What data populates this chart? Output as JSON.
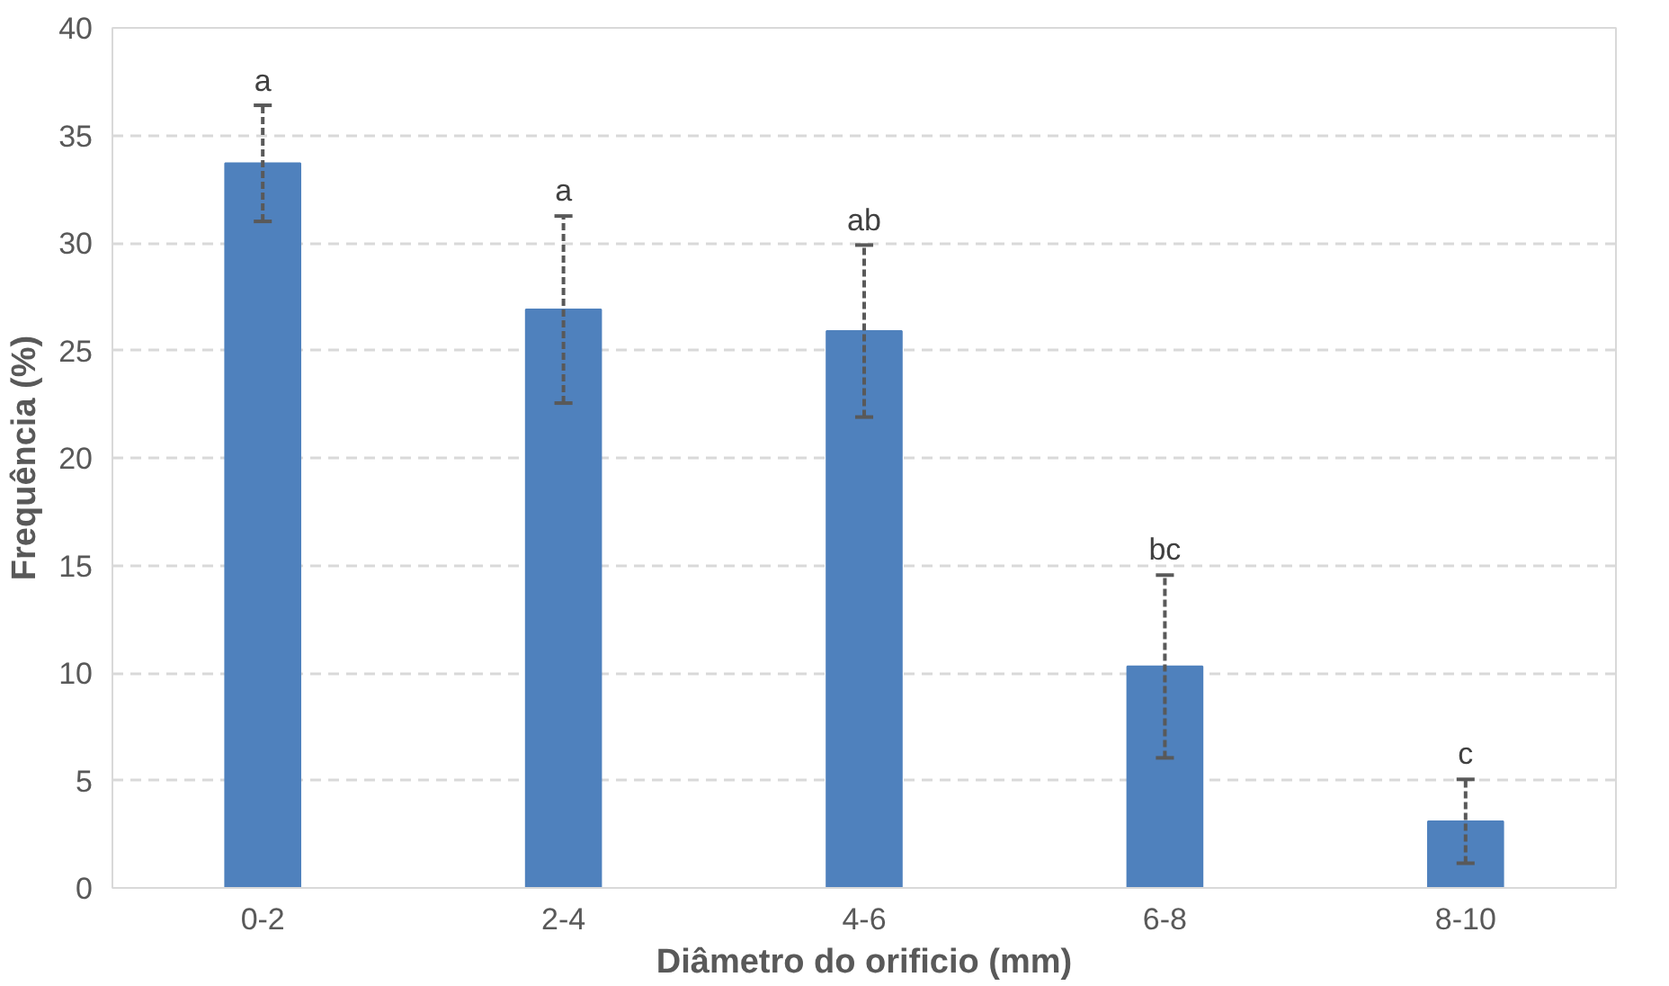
{
  "chart_data": {
    "type": "bar",
    "xlabel": "Diâmetro do orificio (mm)",
    "ylabel": "Frequência (%)",
    "categories": [
      "0-2",
      "2-4",
      "4-6",
      "6-8",
      "8-10"
    ],
    "values": [
      33.7,
      26.9,
      25.9,
      10.3,
      3.1
    ],
    "errors": [
      2.7,
      4.35,
      4.0,
      4.25,
      1.95
    ],
    "color": "#4f81bd",
    "ylim": [
      0,
      40
    ],
    "yticks": [
      0,
      5,
      10,
      15,
      20,
      25,
      30,
      35,
      40
    ],
    "grid": "y",
    "annotations": [
      {
        "text": "a",
        "x": "0-2",
        "y": 36.4
      },
      {
        "text": "a",
        "x": "2-4",
        "y": 31.3
      },
      {
        "text": "ab",
        "x": "4-6",
        "y": 29.9
      },
      {
        "text": "bc",
        "x": "6-8",
        "y": 14.6
      },
      {
        "text": "c",
        "x": "8-10",
        "y": 5.1
      }
    ]
  }
}
